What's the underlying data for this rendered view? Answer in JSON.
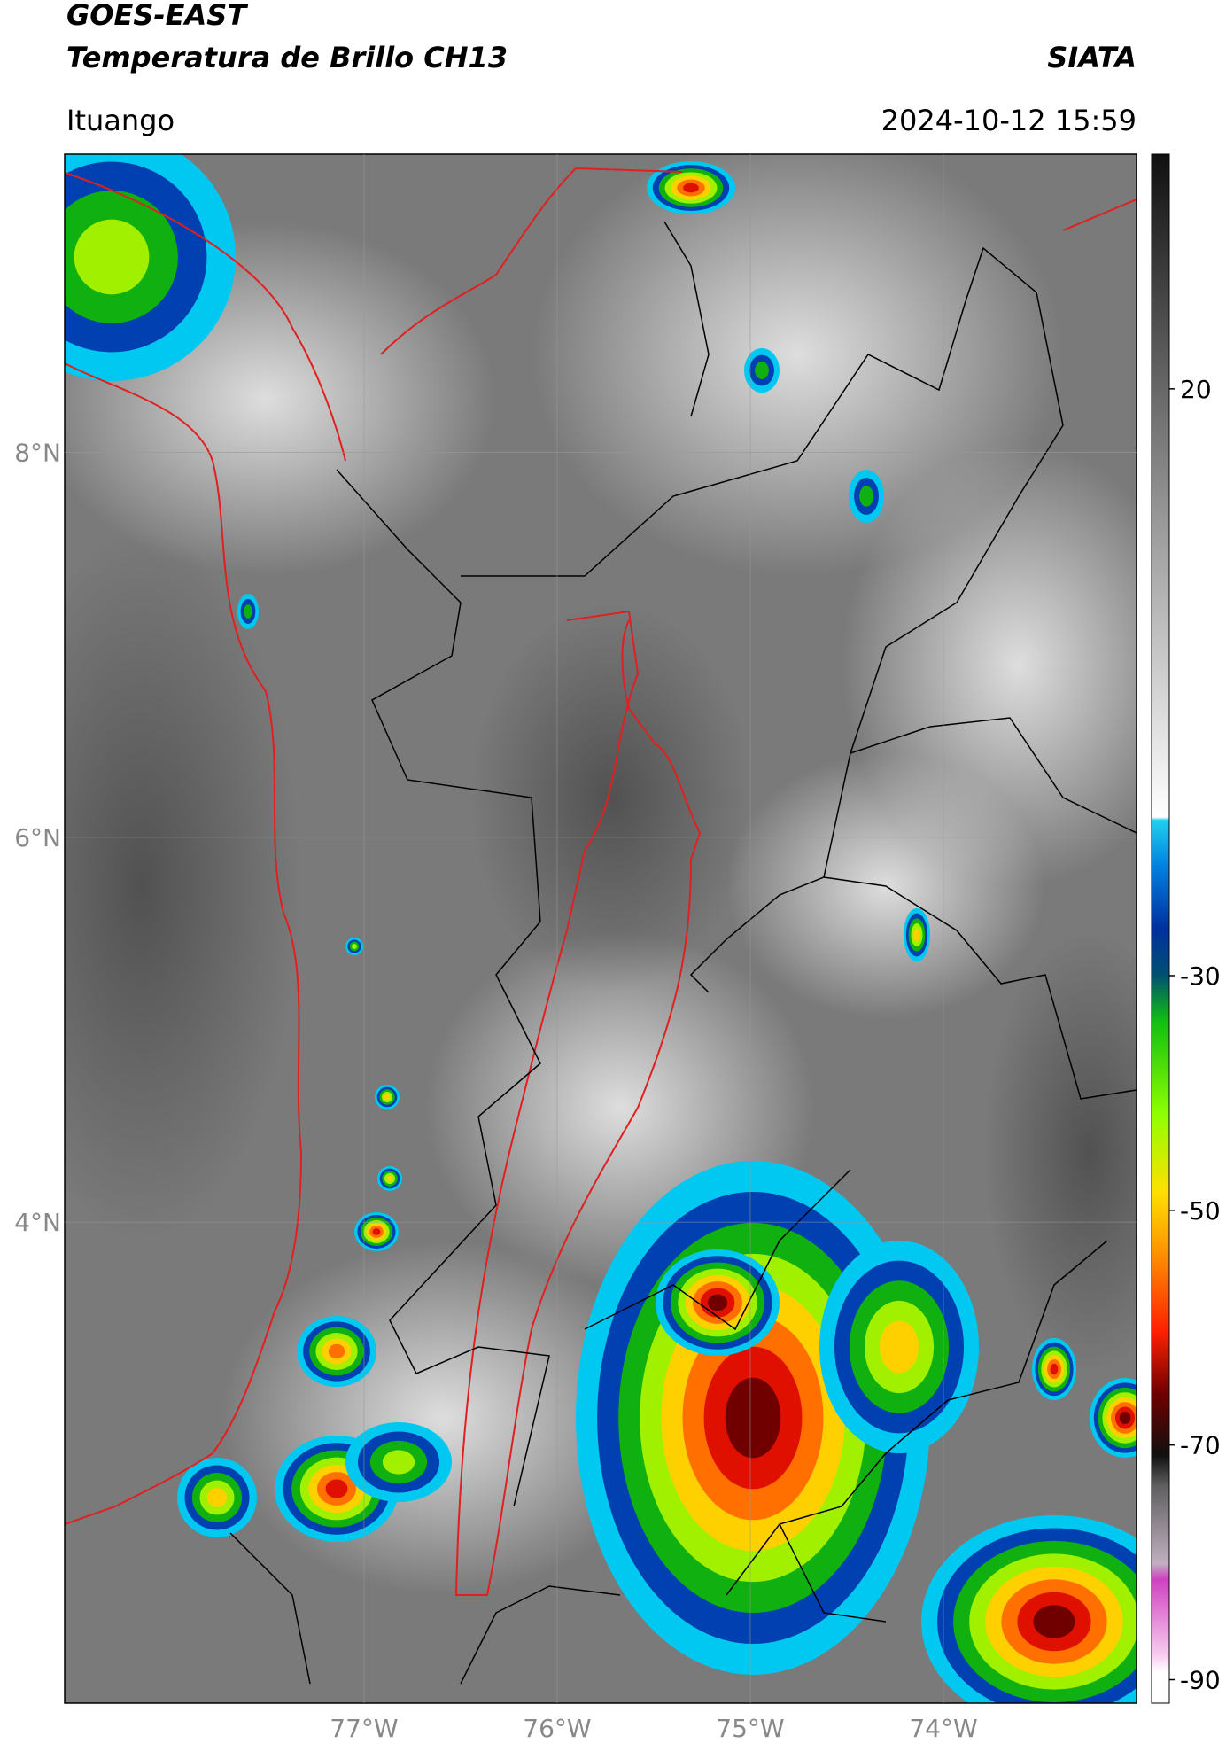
{
  "header": {
    "title": "GOES-EAST",
    "subtitle": "Temperatura de Brillo CH13",
    "agency": "SIATA",
    "location": "Ituango",
    "datetime": "2024-10-12 15:59"
  },
  "map": {
    "lon_lim": [
      -78.55,
      -73.0
    ],
    "lat_lim": [
      1.5,
      9.55
    ],
    "grid": true,
    "lat_ticks": [
      {
        "value": 8,
        "label": "8°N"
      },
      {
        "value": 6,
        "label": "6°N"
      },
      {
        "value": 4,
        "label": "4°N"
      }
    ],
    "lon_ticks": [
      {
        "value": -77,
        "label": "77°W"
      },
      {
        "value": -76,
        "label": "76°W"
      },
      {
        "value": -75,
        "label": "75°W"
      },
      {
        "value": -74,
        "label": "74°W"
      }
    ]
  },
  "colorbar": {
    "lim": [
      -92,
      40
    ],
    "ticks": [
      20,
      -30,
      -50,
      -70,
      -90
    ]
  }
}
